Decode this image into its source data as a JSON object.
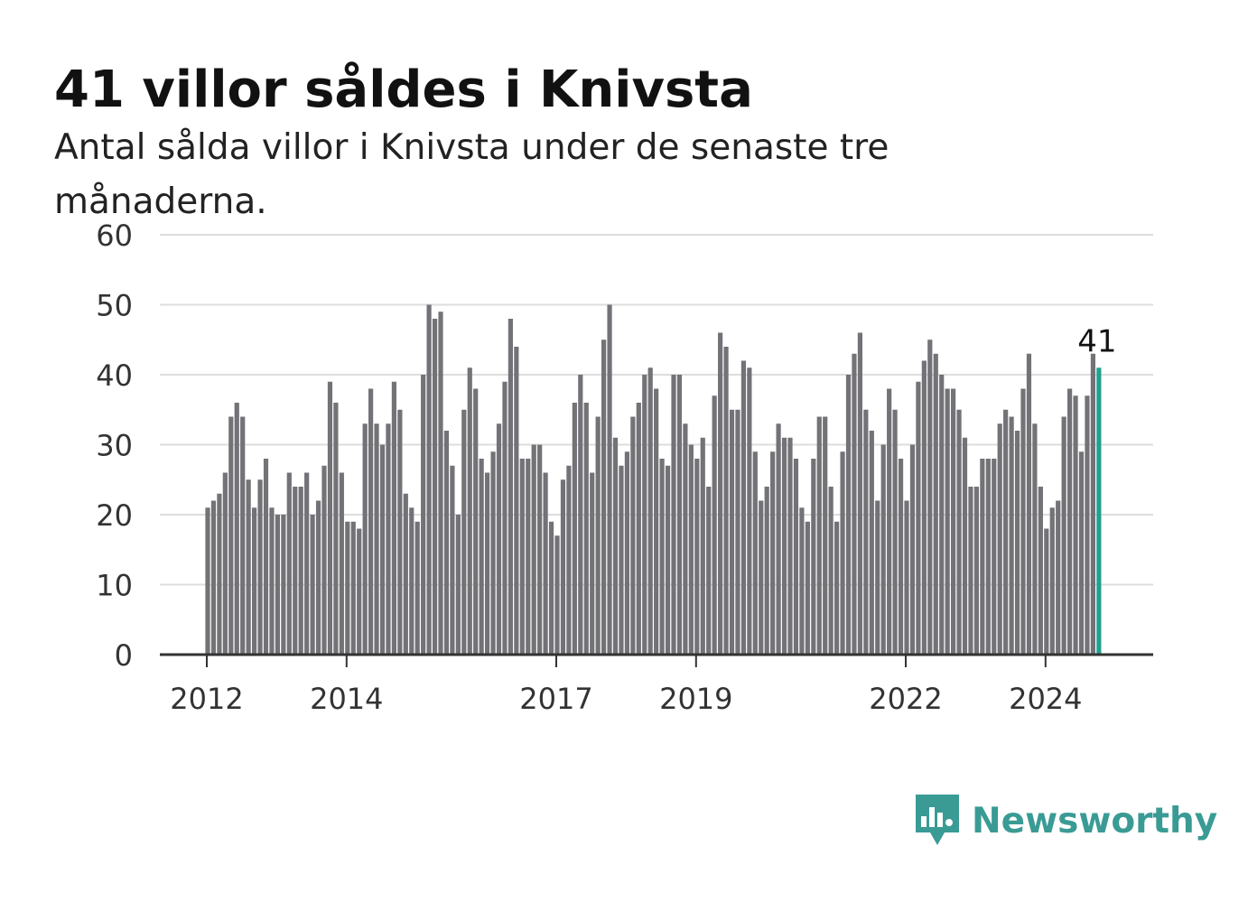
{
  "title": "41 villor såldes i Knivsta",
  "subtitle": "Antal sålda villor i Knivsta under de senaste tre månaderna.",
  "brand": "Newsworthy",
  "colors": {
    "bar": "#737277",
    "highlight": "#22a08f",
    "grid": "#dddddd",
    "axis": "#333333",
    "brand": "#3a9b95"
  },
  "chart_data": {
    "type": "bar",
    "title": "41 villor såldes i Knivsta",
    "xlabel": "",
    "ylabel": "",
    "ylim": [
      0,
      60
    ],
    "yticks": [
      0,
      10,
      20,
      30,
      40,
      50,
      60
    ],
    "grid": true,
    "legend": "none",
    "x_start": "2012-01",
    "x_tick_labels": [
      {
        "label": "2012",
        "month": "2012-01"
      },
      {
        "label": "2014",
        "month": "2014-01"
      },
      {
        "label": "2017",
        "month": "2017-01"
      },
      {
        "label": "2019",
        "month": "2019-01"
      },
      {
        "label": "2022",
        "month": "2022-01"
      },
      {
        "label": "2024",
        "month": "2024-01"
      }
    ],
    "highlight": {
      "month": "2024-10",
      "value": 41,
      "label": "41"
    },
    "values": [
      21,
      22,
      23,
      26,
      34,
      36,
      34,
      25,
      21,
      25,
      28,
      21,
      20,
      20,
      26,
      24,
      24,
      26,
      20,
      22,
      27,
      39,
      36,
      26,
      19,
      19,
      18,
      33,
      38,
      33,
      30,
      33,
      39,
      35,
      23,
      21,
      19,
      40,
      50,
      48,
      49,
      32,
      27,
      20,
      35,
      41,
      38,
      28,
      26,
      29,
      33,
      39,
      48,
      44,
      28,
      28,
      30,
      30,
      26,
      19,
      17,
      25,
      27,
      36,
      40,
      36,
      26,
      34,
      45,
      50,
      31,
      27,
      29,
      34,
      36,
      40,
      41,
      38,
      28,
      27,
      40,
      40,
      33,
      30,
      28,
      31,
      24,
      37,
      46,
      44,
      35,
      35,
      42,
      41,
      29,
      22,
      24,
      29,
      33,
      31,
      31,
      28,
      21,
      19,
      28,
      34,
      34,
      24,
      19,
      29,
      40,
      43,
      46,
      35,
      32,
      22,
      30,
      38,
      35,
      28,
      22,
      30,
      39,
      42,
      45,
      43,
      40,
      38,
      38,
      35,
      31,
      24,
      24,
      28,
      28,
      28,
      33,
      35,
      34,
      32,
      38,
      43,
      33,
      24,
      18,
      21,
      22,
      34,
      38,
      37,
      29,
      37,
      43,
      41
    ]
  }
}
